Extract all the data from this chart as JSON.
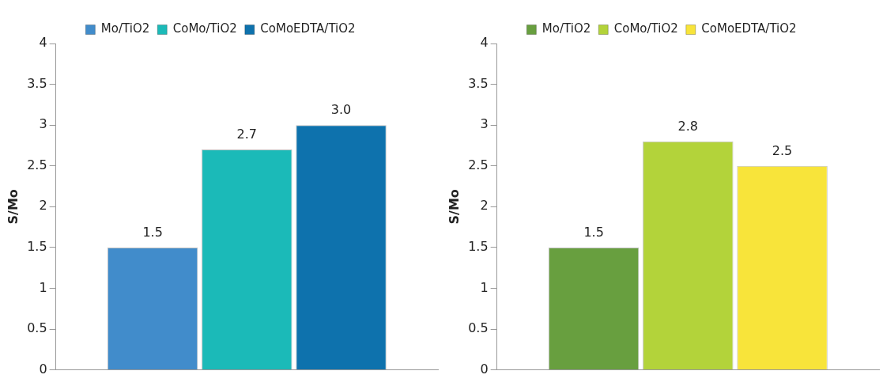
{
  "chart_data": [
    {
      "type": "bar",
      "ylabel": "S/Mo",
      "categories": [
        null
      ],
      "ylim": [
        0,
        4
      ],
      "yticks": [
        0,
        0.5,
        1,
        1.5,
        2,
        2.5,
        3,
        3.5,
        4
      ],
      "grid": false,
      "legend": "top",
      "series": [
        {
          "name": "Mo/TiO2",
          "color": "#418ccb",
          "values": [
            1.5
          ],
          "value_labels": [
            "1.5"
          ]
        },
        {
          "name": "CoMo/TiO2",
          "color": "#1bbab8",
          "values": [
            2.7
          ],
          "value_labels": [
            "2.7"
          ]
        },
        {
          "name": "CoMoEDTA/TiO2",
          "color": "#0e72ad",
          "values": [
            3.0
          ],
          "value_labels": [
            "3.0"
          ]
        }
      ]
    },
    {
      "type": "bar",
      "ylabel": "S/Mo",
      "categories": [
        null
      ],
      "ylim": [
        0,
        4
      ],
      "yticks": [
        0,
        0.5,
        1,
        1.5,
        2,
        2.5,
        3,
        3.5,
        4
      ],
      "grid": false,
      "legend": "top",
      "series": [
        {
          "name": "Mo/TiO2",
          "color": "#689f3f",
          "values": [
            1.5
          ],
          "value_labels": [
            "1.5"
          ]
        },
        {
          "name": "CoMo/TiO2",
          "color": "#b3d33a",
          "values": [
            2.8
          ],
          "value_labels": [
            "2.8"
          ]
        },
        {
          "name": "CoMoEDTA/TiO2",
          "color": "#f8e43a",
          "values": [
            2.5
          ],
          "value_labels": [
            "2.5"
          ]
        }
      ]
    }
  ]
}
